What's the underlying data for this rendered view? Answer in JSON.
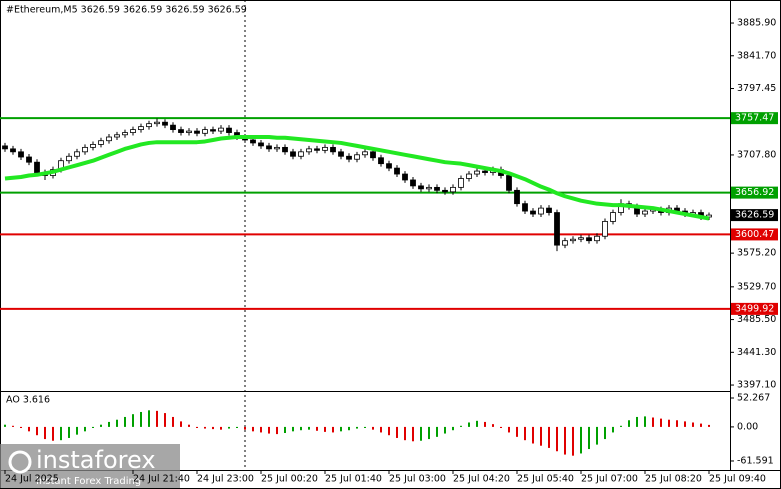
{
  "chart_data": {
    "type": "candlestick",
    "title": "#Ethereum,M5  3626.59 3626.59 3626.59 3626.59",
    "categories": [
      "24 Jul 2025",
      null,
      null,
      null,
      null,
      null,
      null,
      null,
      null,
      null,
      null,
      null,
      null,
      null,
      null,
      null,
      "24 Jul 21:40",
      null,
      null,
      null,
      null,
      null,
      null,
      null,
      "24 Jul 23:00",
      null,
      null,
      null,
      null,
      null,
      null,
      null,
      "25 Jul 00:20",
      null,
      null,
      null,
      null,
      null,
      null,
      null,
      "25 Jul 01:40",
      null,
      null,
      null,
      null,
      null,
      null,
      null,
      "25 Jul 03:00",
      null,
      null,
      null,
      null,
      null,
      null,
      null,
      "25 Jul 04:20",
      null,
      null,
      null,
      null,
      null,
      null,
      null,
      "25 Jul 05:40",
      null,
      null,
      null,
      null,
      null,
      null,
      null,
      "25 Jul 07:00",
      null,
      null,
      null,
      null,
      null,
      null,
      null,
      "25 Jul 08:20",
      null,
      null,
      null,
      null,
      null,
      null,
      null,
      "25 Jul 09:40"
    ],
    "open": [
      3720,
      3716,
      3712,
      3705,
      3698,
      3684,
      3680,
      3688,
      3700,
      3706,
      3712,
      3718,
      3722,
      3727,
      3732,
      3735,
      3738,
      3742,
      3746,
      3750,
      3752,
      3748,
      3742,
      3738,
      3740,
      3737,
      3742,
      3740,
      3744,
      3738,
      3732,
      3728,
      3724,
      3720,
      3716,
      3718,
      3712,
      3706,
      3712,
      3716,
      3714,
      3718,
      3712,
      3706,
      3702,
      3708,
      3712,
      3704,
      3696,
      3690,
      3682,
      3674,
      3666,
      3662,
      3664,
      3660,
      3658,
      3664,
      3676,
      3682,
      3686,
      3684,
      3688,
      3680,
      3660,
      3642,
      3632,
      3628,
      3636,
      3630,
      3586,
      3592,
      3594,
      3596,
      3592,
      3598,
      3618,
      3630,
      3642,
      3638,
      3628,
      3632,
      3634,
      3630,
      3636,
      3632,
      3628,
      3630,
      3624
    ],
    "high": [
      3724,
      3720,
      3716,
      3709,
      3702,
      3688,
      3692,
      3704,
      3710,
      3716,
      3722,
      3726,
      3731,
      3736,
      3739,
      3742,
      3746,
      3750,
      3754,
      3757,
      3756,
      3752,
      3746,
      3744,
      3744,
      3746,
      3746,
      3748,
      3748,
      3742,
      3736,
      3732,
      3728,
      3724,
      3722,
      3722,
      3716,
      3716,
      3720,
      3720,
      3722,
      3722,
      3716,
      3710,
      3712,
      3716,
      3716,
      3708,
      3700,
      3694,
      3686,
      3678,
      3670,
      3668,
      3668,
      3664,
      3668,
      3680,
      3686,
      3690,
      3690,
      3692,
      3692,
      3684,
      3664,
      3646,
      3636,
      3640,
      3640,
      3634,
      3596,
      3598,
      3600,
      3600,
      3602,
      3622,
      3634,
      3648,
      3646,
      3642,
      3636,
      3638,
      3638,
      3640,
      3640,
      3636,
      3634,
      3634,
      3630
    ],
    "low": [
      3712,
      3708,
      3701,
      3694,
      3680,
      3674,
      3676,
      3684,
      3696,
      3702,
      3708,
      3714,
      3718,
      3723,
      3728,
      3731,
      3734,
      3738,
      3742,
      3746,
      3744,
      3738,
      3734,
      3734,
      3733,
      3733,
      3736,
      3736,
      3734,
      3728,
      3724,
      3720,
      3716,
      3712,
      3712,
      3708,
      3702,
      3702,
      3708,
      3710,
      3710,
      3708,
      3702,
      3698,
      3698,
      3704,
      3700,
      3692,
      3686,
      3678,
      3670,
      3662,
      3658,
      3658,
      3656,
      3654,
      3654,
      3660,
      3672,
      3678,
      3680,
      3680,
      3676,
      3656,
      3638,
      3628,
      3624,
      3624,
      3626,
      3578,
      3582,
      3588,
      3590,
      3588,
      3588,
      3594,
      3614,
      3626,
      3634,
      3624,
      3624,
      3628,
      3626,
      3626,
      3628,
      3624,
      3624,
      3620,
      3620
    ],
    "close": [
      3716,
      3712,
      3705,
      3698,
      3684,
      3680,
      3688,
      3700,
      3706,
      3712,
      3718,
      3722,
      3727,
      3732,
      3735,
      3738,
      3742,
      3746,
      3750,
      3752,
      3748,
      3742,
      3738,
      3740,
      3737,
      3742,
      3740,
      3744,
      3738,
      3732,
      3728,
      3724,
      3720,
      3716,
      3718,
      3712,
      3706,
      3712,
      3716,
      3714,
      3718,
      3712,
      3706,
      3702,
      3708,
      3712,
      3704,
      3696,
      3690,
      3682,
      3674,
      3666,
      3662,
      3664,
      3660,
      3658,
      3664,
      3676,
      3682,
      3686,
      3684,
      3688,
      3680,
      3660,
      3642,
      3632,
      3628,
      3636,
      3630,
      3586,
      3592,
      3594,
      3596,
      3592,
      3598,
      3618,
      3630,
      3642,
      3638,
      3628,
      3632,
      3634,
      3630,
      3636,
      3632,
      3628,
      3630,
      3624,
      3626.59
    ],
    "up_color": "#ffffff",
    "down_color": "#000000",
    "ma": {
      "color": "#22e822",
      "values": [
        3676,
        3677,
        3678,
        3680,
        3681,
        3683,
        3685,
        3688,
        3691,
        3694,
        3697,
        3700,
        3704,
        3708,
        3712,
        3716,
        3719,
        3722,
        3724,
        3725,
        3725,
        3725,
        3725,
        3725,
        3725,
        3726,
        3728,
        3730,
        3731,
        3732,
        3732,
        3732,
        3732,
        3732,
        3731,
        3731,
        3730,
        3729,
        3728,
        3727,
        3726,
        3725,
        3724,
        3722,
        3720,
        3718,
        3716,
        3714,
        3712,
        3710,
        3708,
        3706,
        3704,
        3702,
        3700,
        3698,
        3697,
        3696,
        3694,
        3692,
        3690,
        3688,
        3686,
        3683,
        3679,
        3675,
        3670,
        3665,
        3661,
        3656,
        3652,
        3649,
        3646,
        3644,
        3642,
        3641,
        3640,
        3640,
        3639,
        3638,
        3637,
        3636,
        3634,
        3632,
        3630,
        3628,
        3626,
        3624,
        3622
      ]
    },
    "ylim": [
      3390.4,
      3917.0
    ],
    "yticks": [
      {
        "value": 3885.9,
        "label": "3885.90"
      },
      {
        "value": 3841.7,
        "label": "3841.70"
      },
      3797.45,
      {
        "value": 3707.8,
        "label": "3707.80"
      },
      {
        "value": 3575.2,
        "label": "3575.20"
      },
      {
        "value": 3529.7,
        "label": "3529.70"
      },
      {
        "value": 3485.5,
        "label": "3485.50"
      },
      {
        "value": 3441.3,
        "label": "3441.30"
      },
      {
        "value": 3397.1,
        "label": "3397.10"
      }
    ],
    "current_price": {
      "value": 3626.59,
      "color": "#000000"
    },
    "levels": [
      {
        "value": 3757.47,
        "color": "#00a000"
      },
      {
        "value": 3656.92,
        "color": "#00a000"
      },
      {
        "value": 3600.47,
        "color": "#e00000"
      },
      {
        "value": 3499.92,
        "color": "#e00000"
      }
    ],
    "ao": {
      "label": "AO 3.616",
      "up_color": "#00a000",
      "down_color": "#e00000",
      "values": [
        4,
        2,
        -2,
        -8,
        -15,
        -22,
        -25,
        -24,
        -20,
        -14,
        -8,
        -2,
        4,
        9,
        13,
        18,
        23,
        27,
        30,
        29,
        25,
        18,
        10,
        4,
        -2,
        -3,
        -4,
        -5,
        -3,
        -2,
        -5,
        -8,
        -10,
        -12,
        -13,
        -11,
        -8,
        -6,
        -5,
        -7,
        -9,
        -10,
        -8,
        -6,
        -3,
        -2,
        -5,
        -10,
        -15,
        -20,
        -24,
        -26,
        -25,
        -22,
        -18,
        -12,
        -6,
        2,
        8,
        11,
        9,
        5,
        -2,
        -10,
        -18,
        -24,
        -30,
        -34,
        -38,
        -44,
        -50,
        -52,
        -48,
        -40,
        -32,
        -22,
        -10,
        2,
        12,
        18,
        19,
        17,
        15,
        13,
        12,
        10,
        8,
        6,
        3.616
      ],
      "ylim": [
        -77.9,
        63.1
      ],
      "yticks": [
        52.267,
        {
          "value": 0,
          "label": "0.00"
        },
        -61.591
      ]
    },
    "watermark": {
      "brand": "instaforex",
      "slogan": "Instant Forex Trading"
    }
  }
}
